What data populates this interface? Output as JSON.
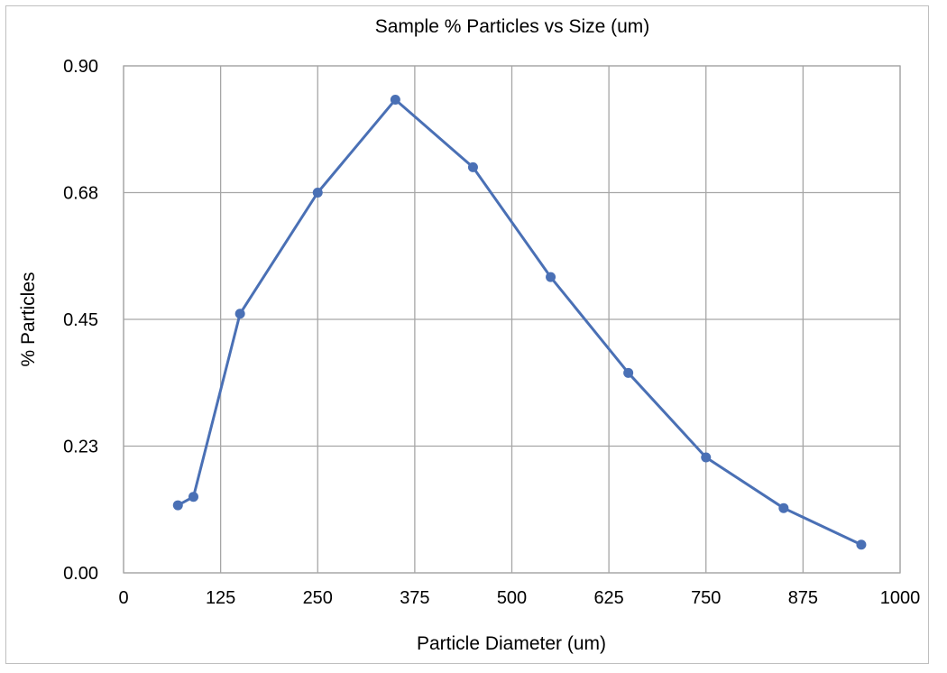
{
  "chart_data": {
    "type": "line",
    "title": "Sample % Particles vs Size (um)",
    "xlabel": "Particle Diameter (um)",
    "ylabel": "% Particles",
    "xlim": [
      0,
      1000
    ],
    "ylim": [
      0,
      0.9
    ],
    "x_ticks": [
      0,
      125,
      250,
      375,
      500,
      625,
      750,
      875,
      1000
    ],
    "x_tick_labels": [
      "0",
      "125",
      "250",
      "375",
      "500",
      "625",
      "750",
      "875",
      "1000"
    ],
    "y_ticks": [
      0,
      0.225,
      0.45,
      0.675,
      0.9
    ],
    "y_tick_labels": [
      "0.00",
      "0.23",
      "0.45",
      "0.68",
      "0.90"
    ],
    "grid": true,
    "legend": "none",
    "series": [
      {
        "color": "#4a70b5",
        "marker": "circle",
        "points": [
          {
            "x": 70,
            "y": 0.12
          },
          {
            "x": 90,
            "y": 0.135
          },
          {
            "x": 150,
            "y": 0.46
          },
          {
            "x": 250,
            "y": 0.675
          },
          {
            "x": 350,
            "y": 0.84
          },
          {
            "x": 450,
            "y": 0.72
          },
          {
            "x": 550,
            "y": 0.525
          },
          {
            "x": 650,
            "y": 0.355
          },
          {
            "x": 750,
            "y": 0.205
          },
          {
            "x": 850,
            "y": 0.115
          },
          {
            "x": 950,
            "y": 0.05
          }
        ]
      }
    ]
  }
}
